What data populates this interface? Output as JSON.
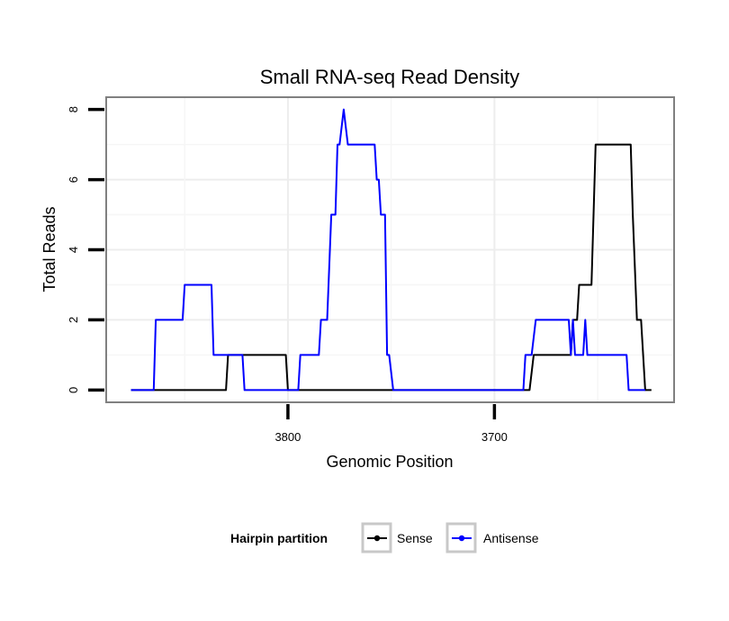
{
  "chart_data": {
    "type": "line",
    "title": "Small RNA-seq Read Density",
    "xlabel": "Genomic Position",
    "ylabel": "Total Reads",
    "xlim": [
      3888,
      3613
    ],
    "ylim": [
      -0.35,
      8.35
    ],
    "x_reversed": true,
    "x_ticks": [
      3800,
      3700
    ],
    "y_ticks": [
      0,
      2,
      4,
      6,
      8
    ],
    "grid": true,
    "legend": {
      "title": "Hairpin partition",
      "position": "bottom",
      "entries": [
        "Sense",
        "Antisense"
      ]
    },
    "series": [
      {
        "name": "Sense",
        "color": "#000000",
        "points": [
          [
            3876,
            0
          ],
          [
            3830,
            0
          ],
          [
            3829,
            1
          ],
          [
            3801,
            1
          ],
          [
            3800,
            0
          ],
          [
            3683,
            0
          ],
          [
            3681,
            1
          ],
          [
            3663,
            1
          ],
          [
            3662,
            2
          ],
          [
            3660,
            2
          ],
          [
            3659,
            3
          ],
          [
            3653,
            3
          ],
          [
            3651,
            7
          ],
          [
            3634,
            7
          ],
          [
            3633,
            5
          ],
          [
            3631,
            2
          ],
          [
            3629,
            2
          ],
          [
            3627,
            0
          ],
          [
            3624,
            0
          ]
        ]
      },
      {
        "name": "Antisense",
        "color": "#0000ff",
        "points": [
          [
            3876,
            0
          ],
          [
            3865,
            0
          ],
          [
            3864,
            2
          ],
          [
            3851,
            2
          ],
          [
            3850,
            3
          ],
          [
            3837,
            3
          ],
          [
            3836,
            1
          ],
          [
            3828,
            1
          ],
          [
            3827,
            1
          ],
          [
            3822,
            1
          ],
          [
            3821,
            0
          ],
          [
            3795,
            0
          ],
          [
            3794,
            1
          ],
          [
            3785,
            1
          ],
          [
            3784,
            2
          ],
          [
            3781,
            2
          ],
          [
            3779,
            5
          ],
          [
            3777,
            5
          ],
          [
            3776,
            7
          ],
          [
            3775,
            7
          ],
          [
            3773,
            8
          ],
          [
            3771,
            7
          ],
          [
            3758,
            7
          ],
          [
            3757,
            6
          ],
          [
            3756,
            6
          ],
          [
            3755,
            5
          ],
          [
            3753,
            5
          ],
          [
            3752,
            1
          ],
          [
            3751,
            1
          ],
          [
            3749,
            0
          ],
          [
            3686,
            0
          ],
          [
            3685,
            1
          ],
          [
            3682,
            1
          ],
          [
            3680,
            2
          ],
          [
            3664,
            2
          ],
          [
            3663,
            1
          ],
          [
            3662,
            2
          ],
          [
            3661,
            1
          ],
          [
            3657,
            1
          ],
          [
            3656,
            2
          ],
          [
            3655,
            1
          ],
          [
            3636,
            1
          ],
          [
            3635,
            0
          ],
          [
            3627,
            0
          ]
        ]
      }
    ]
  }
}
